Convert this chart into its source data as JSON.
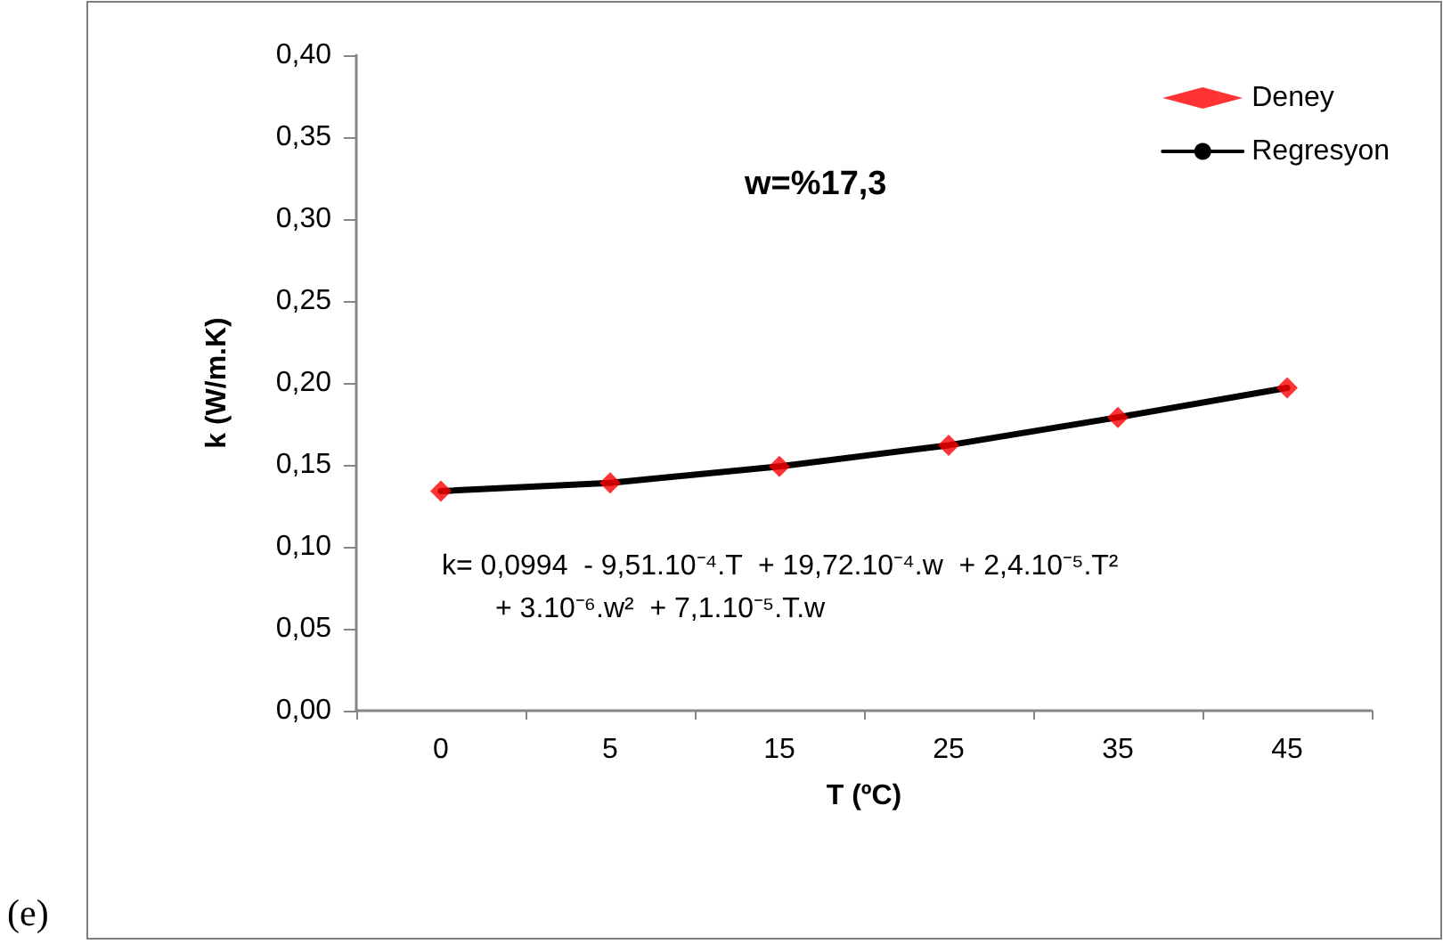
{
  "chart_data": {
    "type": "line",
    "xlabel": "T (ºC)",
    "ylabel": "k (W/m.K)",
    "categories": [
      "0",
      "5",
      "15",
      "25",
      "35",
      "45"
    ],
    "series": [
      {
        "name": "Deney",
        "type": "scatter",
        "marker": "diamond",
        "color": "#ff0000",
        "values": [
          0.134,
          0.139,
          0.149,
          0.162,
          0.179,
          0.197
        ]
      },
      {
        "name": "Regresyon",
        "type": "line",
        "marker": "none",
        "line_style": "solid",
        "color": "#000000",
        "values": [
          0.134,
          0.139,
          0.149,
          0.162,
          0.179,
          0.197
        ]
      }
    ],
    "ylim": [
      0,
      0.4
    ],
    "yticks": [
      {
        "value": 0,
        "label": "0,00"
      },
      {
        "value": 0.05,
        "label": "0,05"
      },
      {
        "value": 0.1,
        "label": "0,10"
      },
      {
        "value": 0.15,
        "label": "0,15"
      },
      {
        "value": 0.2,
        "label": "0,20"
      },
      {
        "value": 0.25,
        "label": "0,25"
      },
      {
        "value": 0.3,
        "label": "0,30"
      },
      {
        "value": 0.35,
        "label": "0,35"
      },
      {
        "value": 0.4,
        "label": "0,40"
      }
    ],
    "grid": false,
    "legend": "top right",
    "annotations": [
      "w=%17,3",
      "k= 0,0994  - 9,51.10⁻⁴.T  + 19,72.10⁻⁴.w  + 2,4.10⁻⁵.T²",
      "+ 3.10⁻⁶.w²  + 7,1.10⁻⁵.T.w",
      "(e)"
    ]
  }
}
